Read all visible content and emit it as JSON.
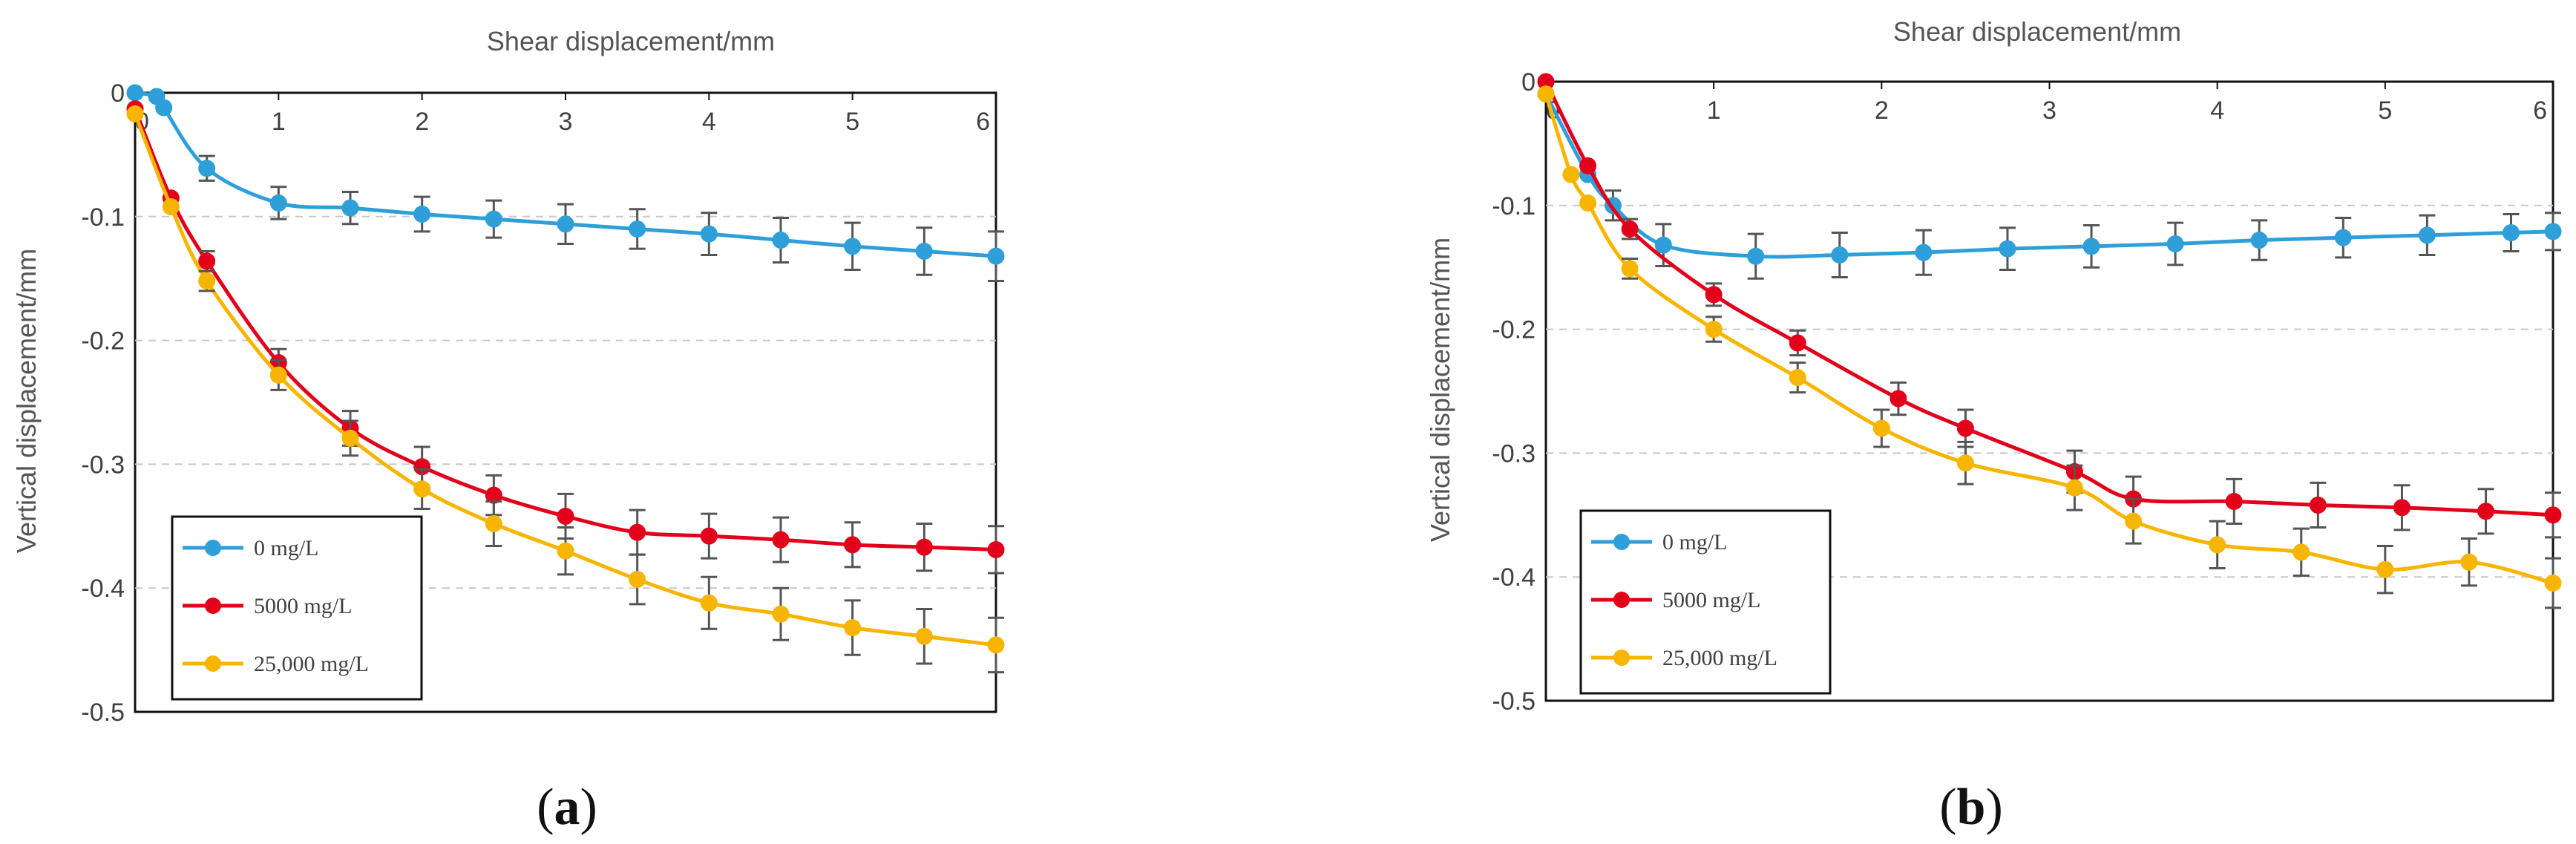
{
  "chart_data": [
    {
      "type": "line",
      "panel_label": "a",
      "xlabel": "Shear displacement/mm",
      "ylabel": "Vertical displacement/mm",
      "xlim": [
        0,
        6
      ],
      "ylim": [
        -0.5,
        0
      ],
      "x_ticks": [
        "0",
        "1",
        "2",
        "3",
        "4",
        "5",
        "6"
      ],
      "y_ticks": [
        "0",
        "-0.1",
        "-0.2",
        "-0.3",
        "-0.4",
        "-0.5"
      ],
      "gridlines": "horizontal dashed",
      "legend_position": "bottom-left",
      "series": [
        {
          "name": "0 mg/L",
          "color": "#2e9fd8",
          "x": [
            0,
            0.15,
            0.2,
            0.5,
            1,
            1.5,
            2,
            2.5,
            3,
            3.5,
            4,
            4.5,
            5,
            5.5,
            6
          ],
          "y": [
            0,
            -0.003,
            -0.012,
            -0.061,
            -0.089,
            -0.093,
            -0.098,
            -0.102,
            -0.106,
            -0.11,
            -0.114,
            -0.119,
            -0.124,
            -0.128,
            -0.132
          ],
          "error": [
            0,
            0,
            0,
            0.01,
            0.013,
            0.013,
            0.014,
            0.015,
            0.016,
            0.016,
            0.017,
            0.018,
            0.019,
            0.019,
            0.02
          ]
        },
        {
          "name": "5000 mg/L",
          "color": "#e3001b",
          "x": [
            0,
            0.25,
            0.5,
            1,
            1.5,
            2,
            2.5,
            3,
            3.5,
            4,
            4.5,
            5,
            5.5,
            6
          ],
          "y": [
            -0.013,
            -0.085,
            -0.136,
            -0.218,
            -0.271,
            -0.302,
            -0.325,
            -0.342,
            -0.355,
            -0.358,
            -0.361,
            -0.365,
            -0.367,
            -0.369
          ],
          "error": [
            0,
            0,
            0.008,
            0.011,
            0.014,
            0.016,
            0.016,
            0.018,
            0.018,
            0.018,
            0.018,
            0.018,
            0.019,
            0.019
          ]
        },
        {
          "name": "25,000 mg/L",
          "color": "#f7b500",
          "x": [
            0,
            0.25,
            0.5,
            1,
            1.5,
            2,
            2.5,
            3,
            3.5,
            4,
            4.5,
            5,
            5.5,
            6
          ],
          "y": [
            -0.017,
            -0.092,
            -0.152,
            -0.228,
            -0.279,
            -0.32,
            -0.348,
            -0.37,
            -0.393,
            -0.412,
            -0.421,
            -0.432,
            -0.439,
            -0.446
          ],
          "error": [
            0,
            0,
            0.008,
            0.012,
            0.014,
            0.016,
            0.018,
            0.019,
            0.02,
            0.021,
            0.021,
            0.022,
            0.022,
            0.022
          ]
        }
      ]
    },
    {
      "type": "line",
      "panel_label": "b",
      "xlabel": "Shear displacement/mm",
      "ylabel": "Vertical displacement/mm",
      "xlim": [
        0,
        6
      ],
      "ylim": [
        -0.5,
        0
      ],
      "x_ticks": [
        "0",
        "1",
        "2",
        "3",
        "4",
        "5",
        "6"
      ],
      "y_ticks": [
        "0",
        "-0.1",
        "-0.2",
        "-0.3",
        "-0.4",
        "-0.5"
      ],
      "gridlines": "horizontal dashed",
      "legend_position": "bottom-left",
      "series": [
        {
          "name": "0 mg/L",
          "color": "#2e9fd8",
          "x": [
            0,
            0.25,
            0.4,
            0.7,
            1.25,
            1.75,
            2.25,
            2.75,
            3.25,
            3.75,
            4.25,
            4.75,
            5.25,
            5.75,
            6
          ],
          "y": [
            -0.01,
            -0.075,
            -0.1,
            -0.132,
            -0.141,
            -0.14,
            -0.138,
            -0.135,
            -0.133,
            -0.131,
            -0.128,
            -0.126,
            -0.124,
            -0.122,
            -0.121
          ],
          "error": [
            0,
            0,
            0.012,
            0.017,
            0.018,
            0.018,
            0.018,
            0.017,
            0.017,
            0.017,
            0.016,
            0.016,
            0.016,
            0.015,
            0.015
          ]
        },
        {
          "name": "5000 mg/L",
          "color": "#e3001b",
          "x": [
            0,
            0.25,
            0.5,
            1,
            1.5,
            2.1,
            2.5,
            3.15,
            3.5,
            4.1,
            4.6,
            5.1,
            5.6,
            6
          ],
          "y": [
            0,
            -0.068,
            -0.119,
            -0.172,
            -0.211,
            -0.256,
            -0.28,
            -0.315,
            -0.337,
            -0.339,
            -0.342,
            -0.344,
            -0.347,
            -0.35
          ],
          "error": [
            0,
            0,
            0.008,
            0.009,
            0.01,
            0.013,
            0.015,
            0.017,
            0.018,
            0.018,
            0.018,
            0.018,
            0.018,
            0.018
          ]
        },
        {
          "name": "25,000 mg/L",
          "color": "#f7b500",
          "x": [
            0,
            0.15,
            0.25,
            0.5,
            1,
            1.5,
            2,
            2.5,
            3.15,
            3.5,
            4,
            4.5,
            5,
            5.5,
            6
          ],
          "y": [
            -0.01,
            -0.075,
            -0.098,
            -0.151,
            -0.2,
            -0.239,
            -0.28,
            -0.308,
            -0.328,
            -0.355,
            -0.374,
            -0.38,
            -0.394,
            -0.388,
            -0.405
          ],
          "error": [
            0,
            0,
            0,
            0.008,
            0.01,
            0.012,
            0.015,
            0.017,
            0.018,
            0.018,
            0.019,
            0.019,
            0.019,
            0.019,
            0.02
          ]
        }
      ]
    }
  ],
  "legend_labels": [
    "0 mg/L",
    "5000 mg/L",
    "25,000 mg/L"
  ]
}
